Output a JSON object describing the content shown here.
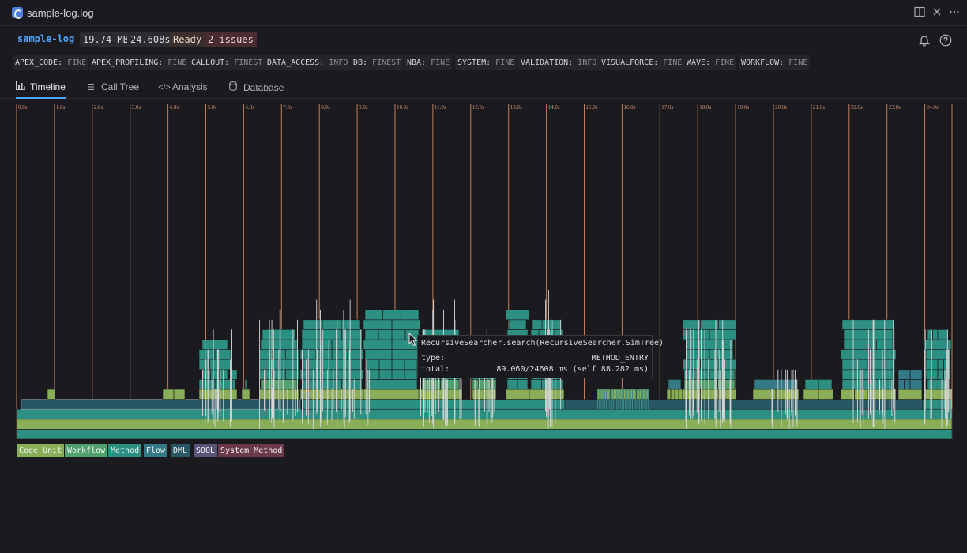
{
  "window": {
    "title": "sample-log.log",
    "split_icon": "split-editor-icon",
    "close_icon": "close-icon",
    "more_icon": "more-icon"
  },
  "header": {
    "log_name": "sample-log",
    "file_size": "19.74 MB",
    "duration": "24.608s",
    "status": "Ready",
    "issues": "2 issues",
    "bell_icon": "bell-icon",
    "help_icon": "help-icon"
  },
  "debug_levels": [
    {
      "key": "APEX_CODE:",
      "value": "FINE"
    },
    {
      "key": "APEX_PROFILING:",
      "value": "FINE"
    },
    {
      "key": "CALLOUT:",
      "value": "FINEST"
    },
    {
      "key": "DATA_ACCESS:",
      "value": "INFO"
    },
    {
      "key": "DB:",
      "value": "FINEST"
    },
    {
      "key": "NBA:",
      "value": "FINE"
    },
    {
      "key": "SYSTEM:",
      "value": "FINE"
    },
    {
      "key": "VALIDATION:",
      "value": "INFO"
    },
    {
      "key": "VISUALFORCE:",
      "value": "FINE"
    },
    {
      "key": "WAVE:",
      "value": "FINE"
    },
    {
      "key": "WORKFLOW:",
      "value": "FINE"
    }
  ],
  "tabs": [
    {
      "label": "Timeline",
      "icon": "bar-chart-icon",
      "active": true
    },
    {
      "label": "Call Tree",
      "icon": "tree-icon",
      "active": false
    },
    {
      "label": "Analysis",
      "icon": "code-icon",
      "active": false
    },
    {
      "label": "Database",
      "icon": "database-icon",
      "active": false
    }
  ],
  "timeline": {
    "time_marks": [
      "0.0s",
      "1.0s",
      "2.0s",
      "3.0s",
      "4.0s",
      "5.0s",
      "6.0s",
      "7.0s",
      "8.0s",
      "9.0s",
      "10.0s",
      "11.0s",
      "12.0s",
      "13.0s",
      "14.0s",
      "15.0s",
      "16.0s",
      "17.0s",
      "18.0s",
      "19.0s",
      "20.0s",
      "21.0s",
      "22.0s",
      "23.0s",
      "24.0s"
    ],
    "total_seconds": 24.608,
    "colors": {
      "code_unit": "#88ae58",
      "workflow": "#51a16e",
      "method": "#2b8f81",
      "flow": "#337986",
      "dml": "#285663",
      "soql": "#5b5479",
      "system_method": "#6a3a4b",
      "grid": "#c37d5b"
    }
  },
  "tooltip": {
    "title": "RecursiveSearcher.search(RecursiveSearcher.SimTree)",
    "type_label": "type:",
    "type_value": "METHOD_ENTRY",
    "total_label": "total:",
    "total_value": "89.060/24608 ms (self 88.282 ms)"
  },
  "legend": [
    {
      "label": "Code Unit",
      "color": "#88ae58"
    },
    {
      "label": "Workflow",
      "color": "#51a16e"
    },
    {
      "label": "Method",
      "color": "#2b8f81"
    },
    {
      "label": "Flow",
      "color": "#337986"
    },
    {
      "label": "DML",
      "color": "#285663"
    },
    {
      "label": "SOQL",
      "color": "#5b5479"
    },
    {
      "label": "System Method",
      "color": "#6a3a4b"
    }
  ]
}
